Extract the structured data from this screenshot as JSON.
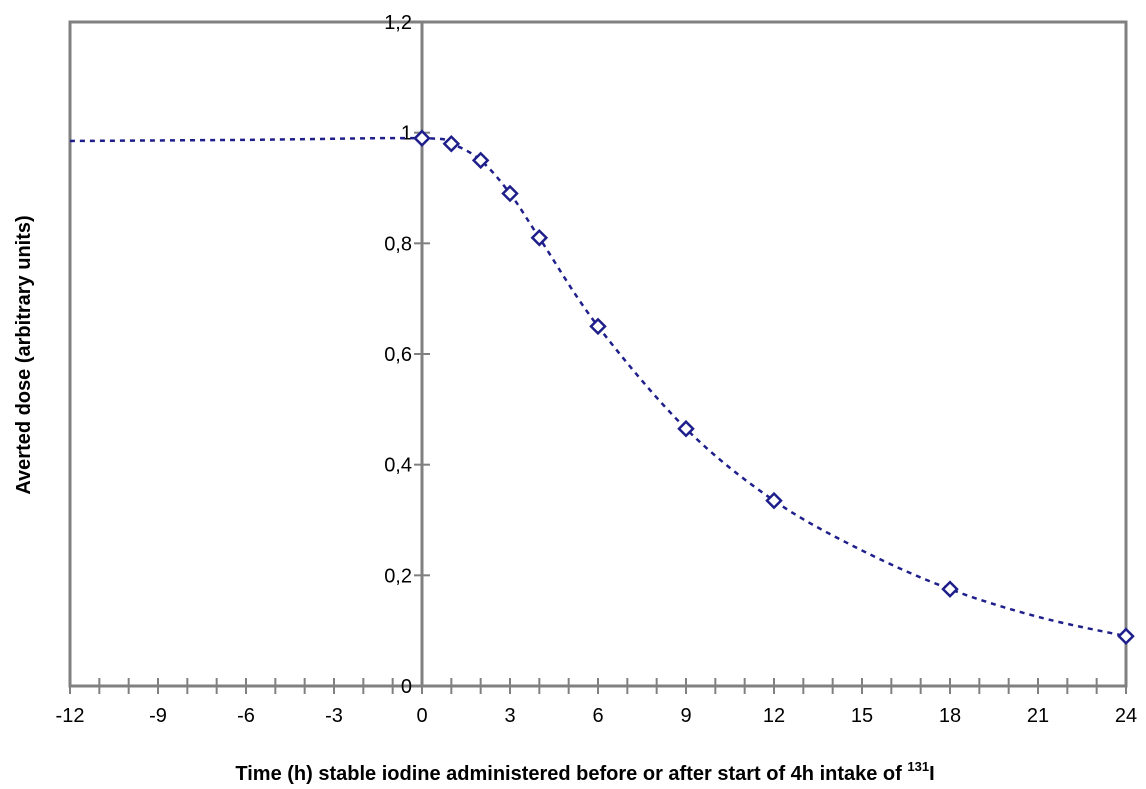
{
  "chart_data": {
    "type": "line",
    "title": "",
    "xlabel": "Time (h) stable iodine administered before or after start of 4h intake of ",
    "xlabel_superscript": "131",
    "xlabel_suffix": "I",
    "ylabel": "Averted dose (arbitrary units)",
    "xlim": [
      -12,
      24
    ],
    "ylim": [
      0,
      1.2
    ],
    "x_ticks": [
      "-12",
      "-9",
      "-6",
      "-3",
      "0",
      "3",
      "6",
      "9",
      "12",
      "15",
      "18",
      "21",
      "24"
    ],
    "x_tick_values": [
      -12,
      -9,
      -6,
      -3,
      0,
      3,
      6,
      9,
      12,
      15,
      18,
      21,
      24
    ],
    "y_ticks": [
      "0",
      "0,2",
      "0,4",
      "0,6",
      "0,8",
      "1",
      "1,2"
    ],
    "y_tick_values": [
      0,
      0.2,
      0.4,
      0.6,
      0.8,
      1.0,
      1.2
    ],
    "grid": false,
    "legend": "none",
    "series": [
      {
        "style": "markers",
        "marker": "diamond",
        "color": "#1f1f8c",
        "x": [
          0,
          1,
          2,
          3,
          4,
          6,
          9,
          12,
          18,
          24
        ],
        "y": [
          0.99,
          0.98,
          0.95,
          0.89,
          0.81,
          0.65,
          0.465,
          0.335,
          0.175,
          0.09
        ]
      },
      {
        "style": "dashed-line",
        "color": "#1f1f8c",
        "x": [
          -12,
          -6,
          0,
          1,
          2,
          3,
          4,
          6,
          9,
          12,
          15,
          18,
          21,
          24
        ],
        "y": [
          0.985,
          0.987,
          0.99,
          0.98,
          0.95,
          0.89,
          0.81,
          0.65,
          0.465,
          0.335,
          0.245,
          0.175,
          0.125,
          0.09
        ]
      }
    ]
  }
}
